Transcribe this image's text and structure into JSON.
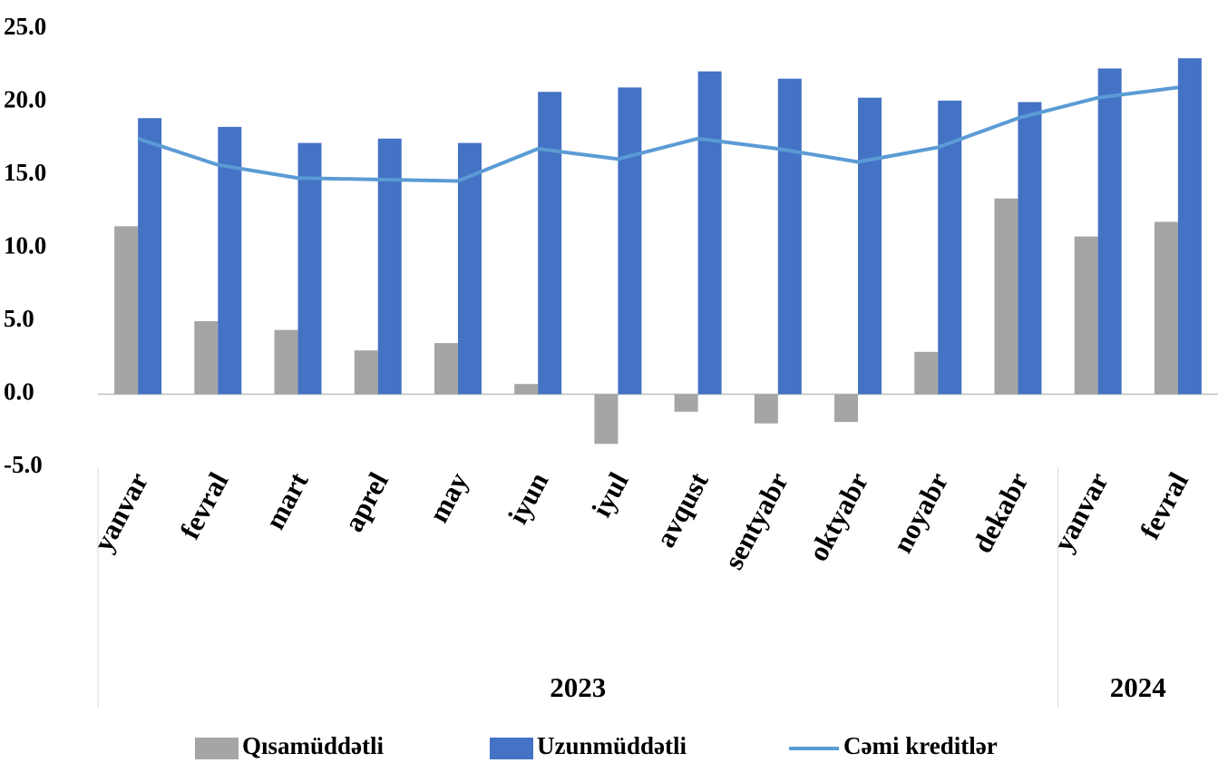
{
  "chart_data": {
    "type": "bar-line",
    "categories": [
      "yanvar",
      "fevral",
      "mart",
      "aprel",
      "may",
      "iyun",
      "iyul",
      "avqust",
      "sentyabr",
      "oktyabr",
      "noyabr",
      "dekabr",
      "yanvar",
      "fevral"
    ],
    "groups": [
      {
        "label": "2023",
        "span": 12
      },
      {
        "label": "2024",
        "span": 2
      }
    ],
    "series": [
      {
        "name": "Qısamüddətli",
        "type": "bar",
        "color": "#a5a5a5",
        "values": [
          11.5,
          5.0,
          4.4,
          3.0,
          3.5,
          0.7,
          -3.4,
          -1.2,
          -2.0,
          -1.9,
          2.9,
          13.4,
          10.8,
          11.8
        ]
      },
      {
        "name": "Uzunmüddətli",
        "type": "bar",
        "color": "#4472c4",
        "values": [
          18.9,
          18.3,
          17.2,
          17.5,
          17.2,
          20.7,
          21.0,
          22.1,
          21.6,
          20.3,
          20.1,
          20.0,
          22.3,
          23.0
        ]
      },
      {
        "name": "Cəmi kreditlər",
        "type": "line",
        "color": "#5b9bd5",
        "values": [
          17.5,
          15.7,
          14.8,
          14.7,
          14.6,
          16.8,
          16.1,
          17.5,
          16.8,
          15.9,
          16.9,
          18.9,
          20.3,
          21.0
        ]
      }
    ],
    "ylim": [
      -5,
      25
    ],
    "yticks": [
      {
        "value": -5,
        "label": "-5.0"
      },
      {
        "value": 0,
        "label": "0.0"
      },
      {
        "value": 5,
        "label": "5.0"
      },
      {
        "value": 10,
        "label": "10.0"
      },
      {
        "value": 15,
        "label": "15.0"
      },
      {
        "value": 20,
        "label": "20.0"
      },
      {
        "value": 25,
        "label": "25.0"
      }
    ],
    "grid": false,
    "legend": "bottom"
  }
}
